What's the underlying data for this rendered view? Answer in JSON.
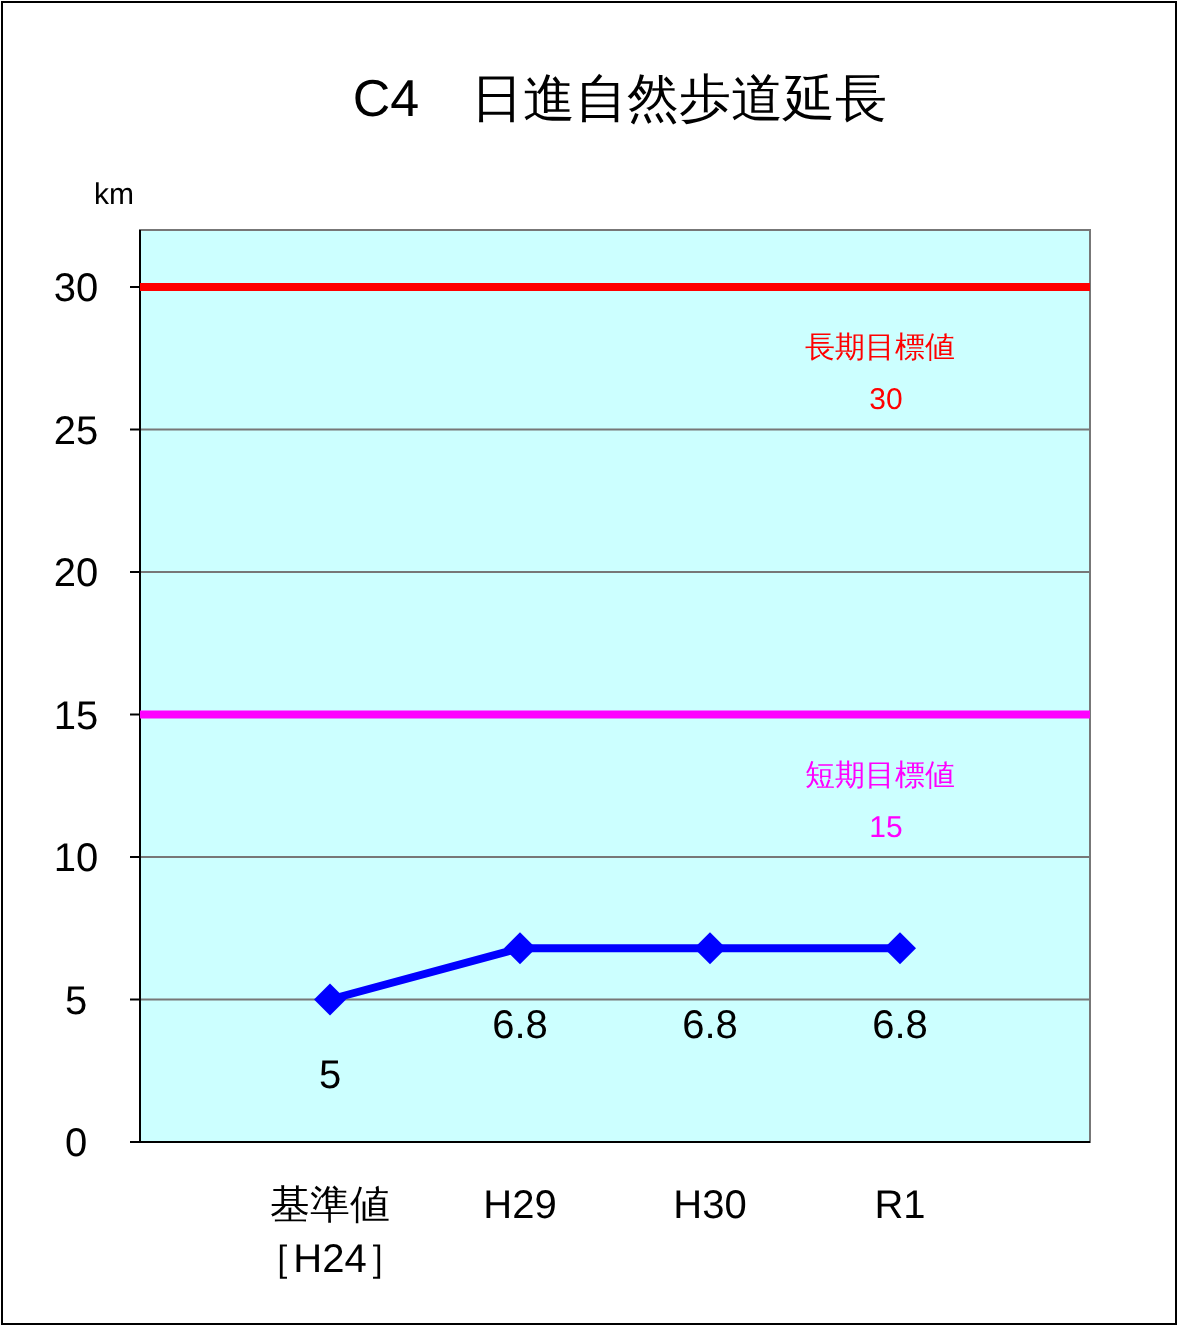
{
  "chart_data": {
    "type": "line",
    "title": "C4　日進自然歩道延長",
    "ylabel": "km",
    "categories": [
      "基準値［H24］",
      "H29",
      "H30",
      "R1"
    ],
    "series": [
      {
        "color": "#0000ff",
        "values": [
          5,
          6.8,
          6.8,
          6.8
        ]
      }
    ],
    "ylim": [
      0,
      32
    ],
    "yticks": [
      0,
      5,
      10,
      15,
      20,
      25,
      30
    ],
    "grid": "y",
    "marker": "diamond",
    "line_style": "solid",
    "data_labels": true,
    "ref_lines": [
      {
        "axis": "y",
        "value": 30,
        "label": "長期目標値30",
        "color": "#ff0000"
      },
      {
        "axis": "y",
        "value": 15,
        "label": "短期目標値15",
        "color": "#ff00ff"
      }
    ]
  }
}
